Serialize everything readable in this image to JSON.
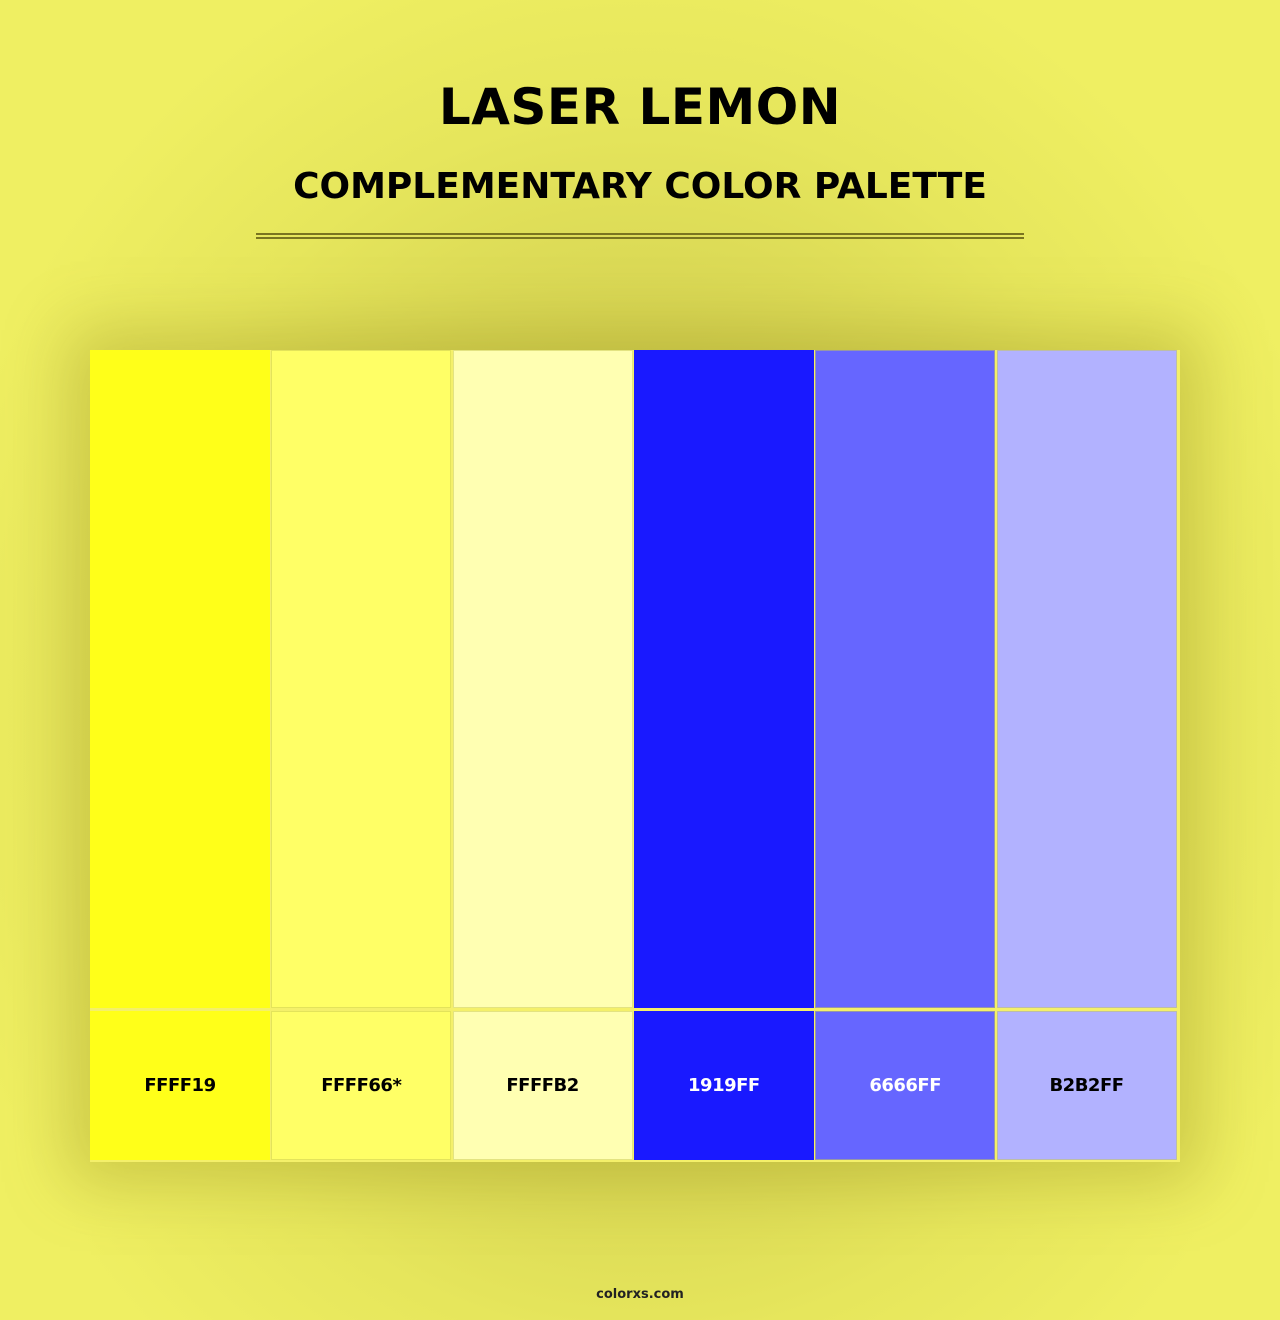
{
  "header": {
    "title": "LASER LEMON",
    "subtitle": "COMPLEMENTARY COLOR PALETTE"
  },
  "palette": [
    {
      "hex": "FFFF19",
      "color": "#FFFF19",
      "text_color": "#000000"
    },
    {
      "hex": "FFFF66*",
      "color": "#FFFF66",
      "text_color": "#000000"
    },
    {
      "hex": "FFFFB2",
      "color": "#FFFFB2",
      "text_color": "#000000"
    },
    {
      "hex": "1919FF",
      "color": "#1919FF",
      "text_color": "#FFFFFF"
    },
    {
      "hex": "6666FF",
      "color": "#6666FF",
      "text_color": "#FFFFFF"
    },
    {
      "hex": "B2B2FF",
      "color": "#B2B2FF",
      "text_color": "#000000"
    }
  ],
  "footer": {
    "site": "colorxs.com"
  }
}
